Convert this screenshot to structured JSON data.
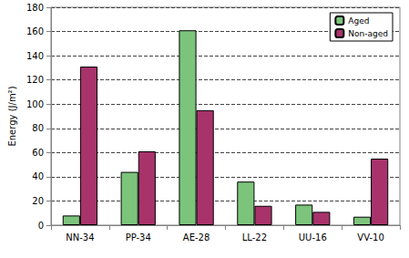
{
  "chart_data": {
    "type": "bar",
    "y_label": "Energy (J/m²)",
    "categories": [
      "NN-34",
      "PP-34",
      "AE-28",
      "LL-22",
      "UU-16",
      "VV-10"
    ],
    "series": [
      {
        "name": "Aged",
        "color": "#7cc47c",
        "values": [
          8,
          44,
          161,
          36,
          17,
          7
        ]
      },
      {
        "name": "Non-aged",
        "color": "#a8336b",
        "values": [
          131,
          61,
          95,
          16,
          11,
          55
        ]
      }
    ],
    "ylim": [
      0,
      180
    ],
    "yticks": [
      0,
      20,
      40,
      60,
      80,
      100,
      120,
      140,
      160,
      180
    ],
    "grid": true,
    "legend": "upper right"
  }
}
